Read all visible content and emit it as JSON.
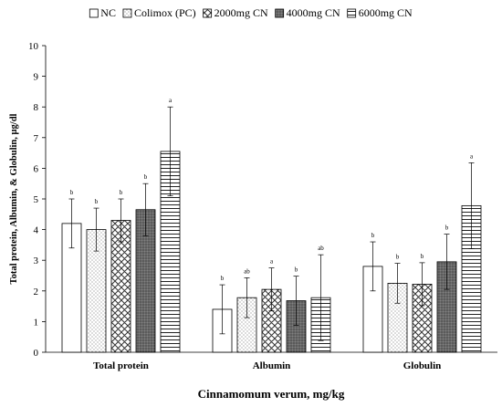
{
  "chart_data": {
    "type": "bar",
    "title": "",
    "xlabel": "Cinnamomum verum, mg/kg",
    "ylabel": "Total protein, Albumin, & Globulin, µg/dl",
    "ylim": [
      0,
      10
    ],
    "yticks": [
      "0",
      "1",
      "2",
      "3",
      "4",
      "5",
      "6",
      "7",
      "8",
      "9",
      "10"
    ],
    "grid": false,
    "legend_position": "top",
    "categories": [
      "Total protein",
      "Albumin",
      "Globulin"
    ],
    "series": [
      {
        "name": "NC",
        "pattern": "empty",
        "values": [
          4.2,
          1.4,
          2.8
        ],
        "errors": [
          0.8,
          0.8,
          0.8
        ],
        "sig": [
          "b",
          "b",
          "b"
        ]
      },
      {
        "name": "Colimox (PC)",
        "pattern": "dots",
        "values": [
          4.0,
          1.78,
          2.25
        ],
        "errors": [
          0.7,
          0.65,
          0.65
        ],
        "sig": [
          "b",
          "ab",
          "b"
        ]
      },
      {
        "name": "2000mg CN",
        "pattern": "crosshatch",
        "values": [
          4.3,
          2.05,
          2.22
        ],
        "errors": [
          0.7,
          0.7,
          0.7
        ],
        "sig": [
          "b",
          "a",
          "b"
        ]
      },
      {
        "name": "4000mg CN",
        "pattern": "dark-dots",
        "values": [
          4.65,
          1.68,
          2.95
        ],
        "errors": [
          0.85,
          0.8,
          0.9
        ],
        "sig": [
          "b",
          "b",
          "b"
        ]
      },
      {
        "name": "6000mg CN",
        "pattern": "horizontal",
        "values": [
          6.55,
          1.78,
          4.78
        ],
        "errors": [
          1.45,
          1.4,
          1.4
        ],
        "sig": [
          "a",
          "ab",
          "a"
        ]
      }
    ]
  }
}
